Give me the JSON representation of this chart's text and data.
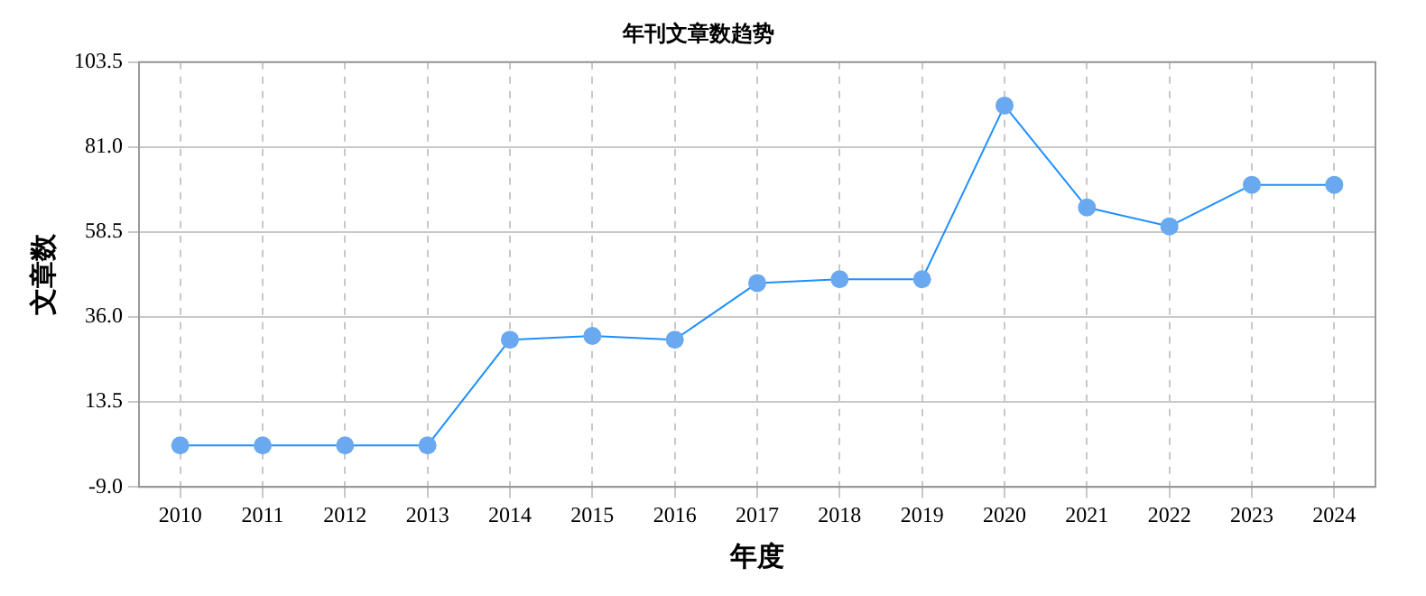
{
  "chart_data": {
    "type": "line",
    "title": "年刊文章数趋势",
    "xlabel": "年度",
    "ylabel": "文章数",
    "categories": [
      "2010",
      "2011",
      "2012",
      "2013",
      "2014",
      "2015",
      "2016",
      "2017",
      "2018",
      "2019",
      "2020",
      "2021",
      "2022",
      "2023",
      "2024"
    ],
    "series": [
      {
        "color": "#1e90ff",
        "values": [
          2,
          2,
          2,
          2,
          30,
          31,
          30,
          45,
          46,
          46,
          92,
          65,
          60,
          71,
          71
        ]
      }
    ],
    "ylim": [
      -9,
      103.5
    ],
    "yticks": [
      {
        "value": -9,
        "label": "-9.0"
      },
      13.5,
      {
        "value": 36,
        "label": "36.0"
      },
      58.5,
      {
        "value": 81,
        "label": "81.0"
      },
      103.5
    ],
    "grid": true,
    "legend": false,
    "marker": "circle",
    "line_style": "solid"
  }
}
